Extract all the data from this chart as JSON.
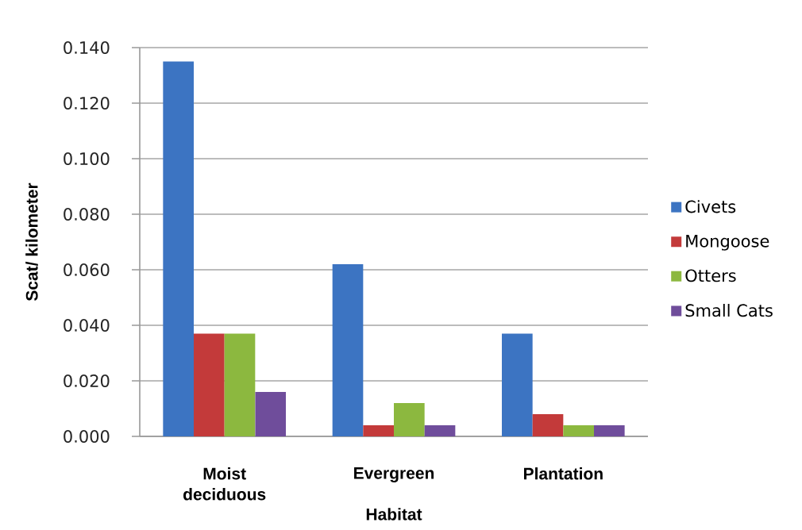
{
  "chart_data": {
    "type": "bar",
    "xlabel": "Habitat",
    "ylabel": "Scat/ kilometer",
    "categories": [
      "Moist deciduous",
      "Evergreen",
      "Plantation"
    ],
    "series": [
      {
        "name": "Civets",
        "color": "#3c74c2",
        "values": [
          0.135,
          0.062,
          0.037
        ]
      },
      {
        "name": "Mongoose",
        "color": "#c33a3a",
        "values": [
          0.037,
          0.004,
          0.008
        ]
      },
      {
        "name": "Otters",
        "color": "#8cb83f",
        "values": [
          0.037,
          0.012,
          0.004
        ]
      },
      {
        "name": "Small Cats",
        "color": "#6f4d9b",
        "values": [
          0.016,
          0.004,
          0.004
        ]
      }
    ],
    "ylim": [
      0,
      0.14
    ],
    "yticks": [
      {
        "value": 0,
        "label": "0.000"
      },
      {
        "value": 0.02,
        "label": "0.020"
      },
      {
        "value": 0.04,
        "label": "0.040"
      },
      {
        "value": 0.06,
        "label": "0.060"
      },
      {
        "value": 0.08,
        "label": "0.080"
      },
      {
        "value": 0.1,
        "label": "0.100"
      },
      {
        "value": 0.12,
        "label": "0.120"
      },
      {
        "value": 0.14,
        "label": "0.140"
      }
    ],
    "grid": "y",
    "legend": "right"
  }
}
